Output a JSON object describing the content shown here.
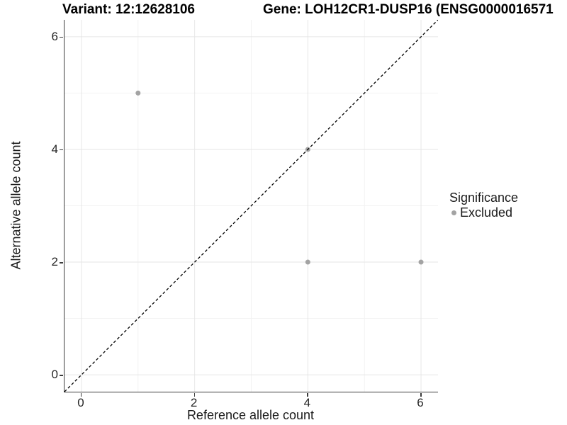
{
  "titles": {
    "variant": "Variant: 12:12628106",
    "gene": "Gene: LOH12CR1-DUSP16 (ENSG0000016571"
  },
  "legend": {
    "title": "Significance",
    "items": [
      {
        "label": "Excluded",
        "color": "#a3a3a3"
      }
    ]
  },
  "chart_data": {
    "type": "scatter",
    "title_left": "Variant: 12:12628106",
    "title_right": "Gene: LOH12CR1-DUSP16 (ENSG0000016571",
    "xlabel": "Reference allele count",
    "ylabel": "Alternative allele count",
    "xlim": [
      -0.3,
      6.3
    ],
    "ylim": [
      -0.3,
      6.3
    ],
    "xticks": [
      0,
      2,
      4,
      6
    ],
    "yticks": [
      0,
      2,
      4,
      6
    ],
    "minor_xticks": [
      1,
      3,
      5
    ],
    "minor_yticks": [
      1,
      3,
      5
    ],
    "grid": true,
    "legend_position": "right",
    "series": [
      {
        "name": "Excluded",
        "color": "#a3a3a3",
        "marker_radius": 3.5,
        "points": [
          [
            1,
            5
          ],
          [
            4,
            4
          ],
          [
            4,
            2
          ],
          [
            6,
            2
          ]
        ]
      }
    ],
    "reference_line": {
      "equation": "y = x",
      "style": "dashed",
      "color": "#000000"
    },
    "colors": {
      "major_grid": "#e6e6e6",
      "minor_grid": "#f2f2f2",
      "axis_line": "#3c3c3c",
      "point_gray": "#a3a3a3"
    }
  }
}
